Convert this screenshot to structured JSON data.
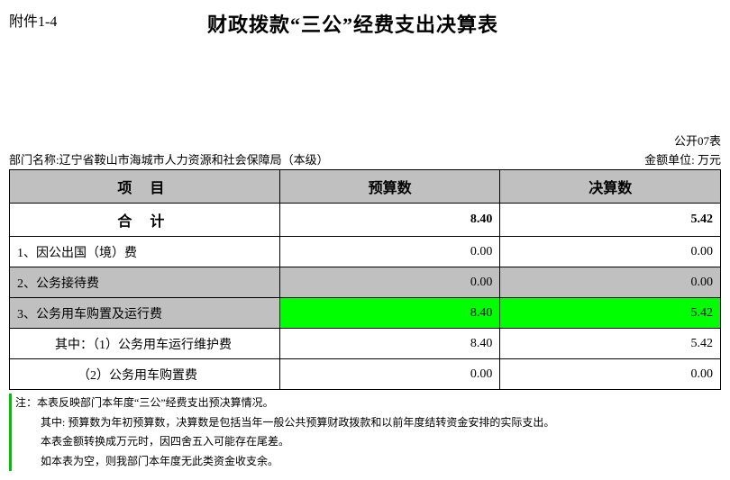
{
  "header": {
    "attachment": "附件1-4",
    "title": "财政拨款“三公”经费支出决算表"
  },
  "meta": {
    "form_no": "公开07表",
    "dept_label": "部门名称:",
    "dept_name": "辽宁省鞍山市海城市人力资源和社会保障局（本级）",
    "unit": "金额单位: 万元"
  },
  "table": {
    "columns": [
      "项目",
      "预算数",
      "决算数"
    ],
    "total_row": {
      "label": "合计",
      "budget": "8.40",
      "final": "5.42"
    },
    "rows": [
      {
        "label": "1、因公出国（境）费",
        "budget": "0.00",
        "final": "0.00",
        "shade": false,
        "highlight": false,
        "indent": 1
      },
      {
        "label": "2、公务接待费",
        "budget": "0.00",
        "final": "0.00",
        "shade": true,
        "highlight": false,
        "indent": 1
      },
      {
        "label": "3、公务用车购置及运行费",
        "budget": "8.40",
        "final": "5.42",
        "shade": true,
        "highlight": true,
        "indent": 1
      },
      {
        "label": "其中：（1）公务用车运行维护费",
        "budget": "8.40",
        "final": "5.42",
        "shade": false,
        "highlight": false,
        "indent": 2
      },
      {
        "label": "（2）公务用车购置费",
        "budget": "0.00",
        "final": "0.00",
        "shade": false,
        "highlight": false,
        "indent": 3
      }
    ]
  },
  "notes": {
    "lines": [
      {
        "text": "注：本表反映部门本年度“三公”经费支出预决算情况。",
        "indent": 1
      },
      {
        "text": "其中: 预算数为年初预算数，决算数是包括当年一般公共预算财政拨款和以前年度结转资金安排的实际支出。",
        "indent": 2
      },
      {
        "text": "本表金额转换成万元时，因四舍五入可能存在尾差。",
        "indent": 2
      },
      {
        "text": "如本表为空，则我部门本年度无此类资金收支余。",
        "indent": 2
      }
    ]
  },
  "colors": {
    "header_bg": "#c0c0c0",
    "highlight_bg": "#00ff00",
    "note_border": "#00c000",
    "border": "#000000"
  }
}
